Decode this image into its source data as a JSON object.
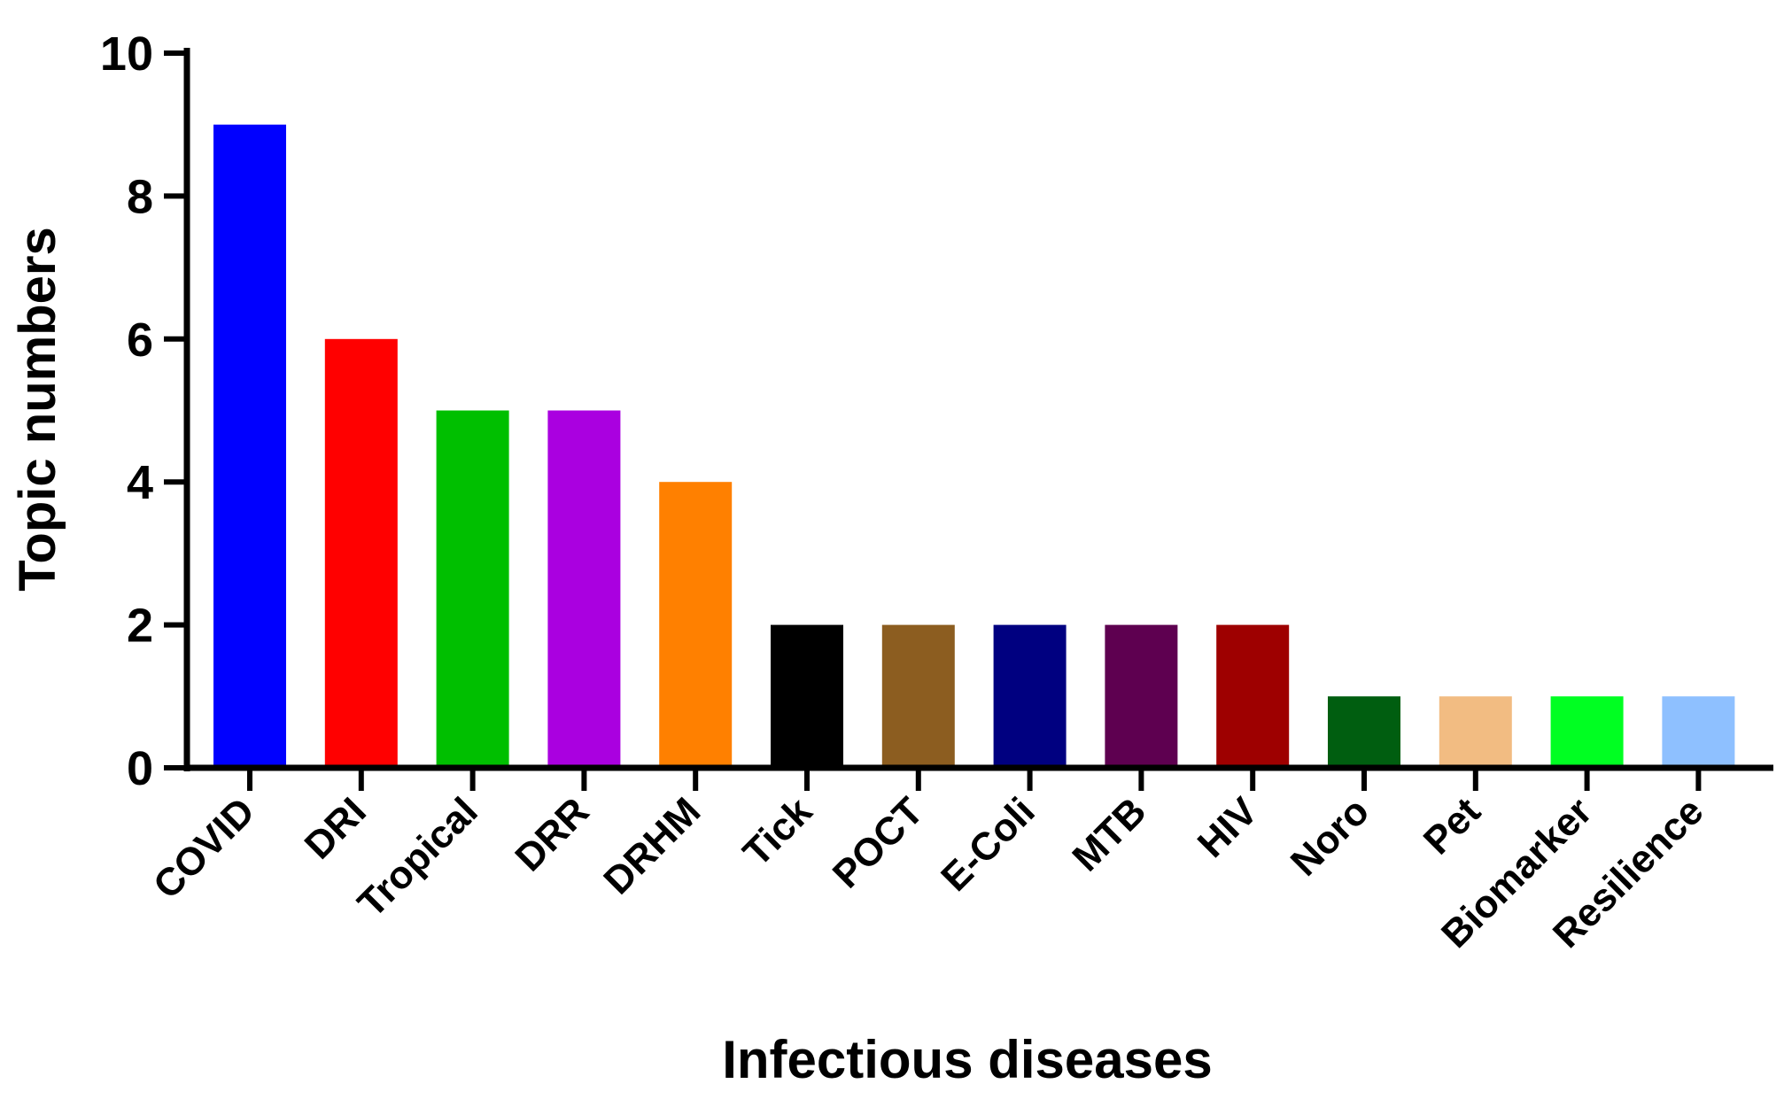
{
  "chart_data": {
    "type": "bar",
    "title": "",
    "xlabel": "Infectious diseases",
    "ylabel": "Topic numbers",
    "ylim": [
      0,
      10
    ],
    "yticks": [
      0,
      2,
      4,
      6,
      8,
      10
    ],
    "grid": false,
    "legend": "none",
    "categories": [
      "COVID",
      "DRI",
      "Tropical",
      "DRR",
      "DRHM",
      "Tick",
      "POCT",
      "E-Coli",
      "MTB",
      "HIV",
      "Noro",
      "Pet",
      "Biomarker",
      "Resilience"
    ],
    "values": [
      9,
      6,
      5,
      5,
      4,
      2,
      2,
      2,
      2,
      2,
      1,
      1,
      1,
      1
    ],
    "colors": [
      "#0000ff",
      "#ff0000",
      "#00bf00",
      "#aa00e0",
      "#ff8000",
      "#000000",
      "#8c5d20",
      "#000080",
      "#5e0050",
      "#9e0000",
      "#005e10",
      "#f2bc82",
      "#00ff22",
      "#8ec0ff"
    ]
  }
}
